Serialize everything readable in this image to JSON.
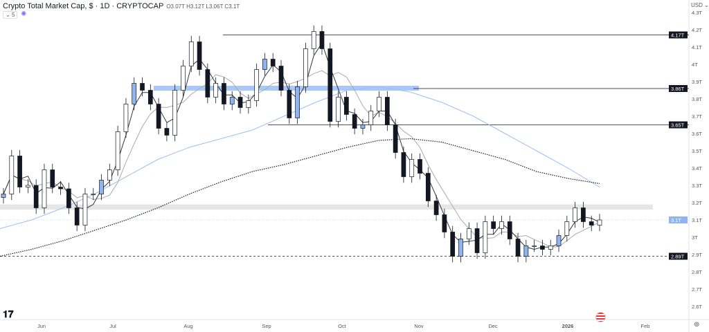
{
  "header": {
    "title": "Crypto Total Market Cap, $ · 1D · CRYPTOCAP",
    "open": "O3.07T",
    "high": "H3.12T",
    "low": "L3.06T",
    "close": "C3.1T",
    "indicator_count": "5"
  },
  "currency": "USD",
  "chart_data": {
    "type": "candlestick",
    "title": "Crypto Total Market Cap, $ · 1D · CRYPTOCAP",
    "ylim": [
      2.5,
      4.35
    ],
    "y_ticks": [
      "4.3T",
      "4.2T",
      "4.1T",
      "4T",
      "3.9T",
      "3.8T",
      "3.7T",
      "3.6T",
      "3.5T",
      "3.4T",
      "3.3T",
      "3.2T",
      "3.1T",
      "3T",
      "2.9T",
      "2.8T",
      "2.7T",
      "2.6T"
    ],
    "y_tick_values": [
      4.3,
      4.2,
      4.1,
      4.0,
      3.9,
      3.8,
      3.7,
      3.6,
      3.5,
      3.4,
      3.3,
      3.2,
      3.1,
      3.0,
      2.9,
      2.8,
      2.7,
      2.6
    ],
    "x_ticks": [
      "Jun",
      "Jul",
      "Aug",
      "Sep",
      "Oct",
      "Nov",
      "Dec",
      "2026",
      "Feb"
    ],
    "closes": [
      3.25,
      3.47,
      3.29,
      3.3,
      3.17,
      3.39,
      3.29,
      3.28,
      3.17,
      3.07,
      3.25,
      3.25,
      3.33,
      3.39,
      3.61,
      3.77,
      3.89,
      3.85,
      3.77,
      3.63,
      3.59,
      3.85,
      3.99,
      4.13,
      3.97,
      3.81,
      3.89,
      3.77,
      3.81,
      3.75,
      3.79,
      3.97,
      4.03,
      3.99,
      3.85,
      3.69,
      3.87,
      4.09,
      4.19,
      4.09,
      3.67,
      3.81,
      3.71,
      3.63,
      3.65,
      3.73,
      3.81,
      3.65,
      3.49,
      3.35,
      3.45,
      3.37,
      3.21,
      3.13,
      3.03,
      2.89,
      2.99,
      3.05,
      2.91,
      3.09,
      3.05,
      3.09,
      2.99,
      2.89,
      2.95,
      2.95,
      2.93,
      2.95,
      3.01,
      3.09,
      3.17,
      3.09,
      3.07,
      3.1
    ],
    "long_ma": [
      3.05,
      3.1,
      3.17,
      3.25,
      3.35,
      3.45,
      3.52,
      3.57,
      3.62,
      3.7,
      3.78,
      3.85,
      3.87,
      3.84,
      3.78,
      3.7,
      3.6,
      3.5,
      3.4,
      3.29
    ],
    "ma200": [
      2.89,
      2.93,
      2.98,
      3.04,
      3.1,
      3.17,
      3.25,
      3.32,
      3.38,
      3.42,
      3.47,
      3.52,
      3.56,
      3.57,
      3.55,
      3.5,
      3.45,
      3.38,
      3.34,
      3.31
    ],
    "levels": [
      {
        "label": "4.17T",
        "value": 4.17
      },
      {
        "label": "3.86T",
        "value": 3.86
      },
      {
        "label": "3.65T",
        "value": 3.65
      },
      {
        "label": "2.89T",
        "value": 2.89
      }
    ],
    "last_price": {
      "label": "3.1T",
      "value": 3.1
    },
    "zone": [
      3.16,
      3.19
    ]
  }
}
